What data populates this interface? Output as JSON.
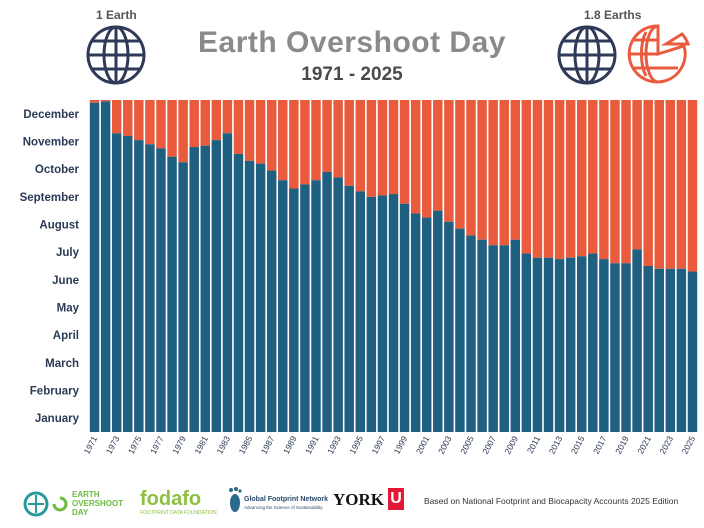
{
  "header": {
    "title": "Earth Overshoot Day",
    "subtitle": "1971 - 2025",
    "left_label": "1 Earth",
    "right_label": "1.8 Earths"
  },
  "colors": {
    "blue": "#1f5f7f",
    "orange": "#ea5b3e",
    "globe": "#2e3a57"
  },
  "icons": [
    "globe-icon",
    "globe-icon",
    "partial-globe-icon"
  ],
  "chart_data": {
    "type": "bar",
    "stacked": true,
    "title": "Earth Overshoot Day",
    "subtitle": "1971 - 2025",
    "y_categories": [
      "January",
      "February",
      "March",
      "April",
      "May",
      "June",
      "July",
      "August",
      "September",
      "October",
      "November",
      "December"
    ],
    "ylim": [
      0,
      12
    ],
    "x_tick_labels": [
      "1971",
      "1973",
      "1975",
      "1977",
      "1979",
      "1981",
      "1983",
      "1985",
      "1987",
      "1989",
      "1991",
      "1993",
      "1995",
      "1997",
      "1999",
      "2001",
      "2003",
      "2005",
      "2007",
      "2009",
      "2011",
      "2013",
      "2015",
      "2017",
      "2019",
      "2021",
      "2023",
      "2025"
    ],
    "series": [
      {
        "name": "overshoot_day_month",
        "x": [
          1971,
          1972,
          1973,
          1974,
          1975,
          1976,
          1977,
          1978,
          1979,
          1980,
          1981,
          1982,
          1983,
          1984,
          1985,
          1986,
          1987,
          1988,
          1989,
          1990,
          1991,
          1992,
          1993,
          1994,
          1995,
          1996,
          1997,
          1998,
          1999,
          2000,
          2001,
          2002,
          2003,
          2004,
          2005,
          2006,
          2007,
          2008,
          2009,
          2010,
          2011,
          2012,
          2013,
          2014,
          2015,
          2016,
          2017,
          2018,
          2019,
          2020,
          2021,
          2022,
          2023,
          2024,
          2025
        ],
        "values": [
          11.9,
          11.95,
          10.8,
          10.7,
          10.55,
          10.4,
          10.25,
          9.95,
          9.75,
          10.3,
          10.35,
          10.55,
          10.8,
          10.05,
          9.8,
          9.7,
          9.45,
          9.1,
          8.8,
          8.95,
          9.1,
          9.4,
          9.2,
          8.9,
          8.7,
          8.5,
          8.55,
          8.6,
          8.25,
          7.9,
          7.75,
          8.0,
          7.6,
          7.35,
          7.1,
          6.95,
          6.75,
          6.75,
          6.95,
          6.45,
          6.3,
          6.3,
          6.25,
          6.3,
          6.35,
          6.45,
          6.25,
          6.1,
          6.1,
          6.6,
          6.0,
          5.9,
          5.9,
          5.9,
          5.8
        ]
      }
    ]
  },
  "footer": {
    "logo1_line1": "EARTH",
    "logo1_line2": "OVERSHOOT",
    "logo1_line3": "DAY",
    "logo2": "fodafo",
    "logo2_sub": "FOOTPRINT DATA FOUNDATION",
    "logo3_line1": "Global Footprint Network",
    "logo3_line2": "Advancing the Science of Sustainability",
    "logo4": "YORK",
    "logo4_mark": "U",
    "note": "Based on National Footprint and Biocapacity Accounts 2025 Edition"
  }
}
